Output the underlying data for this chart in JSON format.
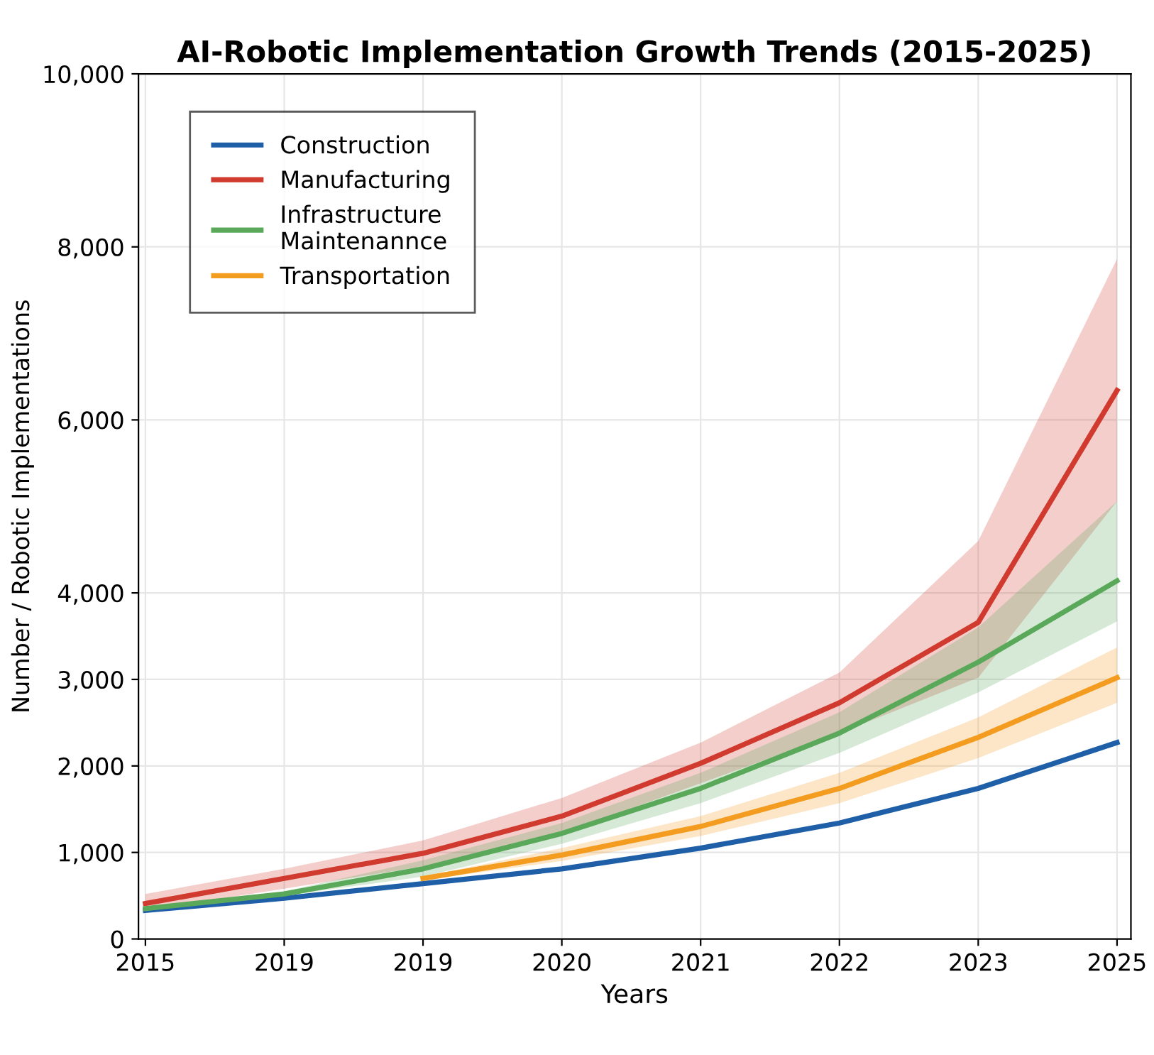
{
  "chart_data": {
    "type": "line",
    "title": "AI-Robotic Implementation Growth Trends (2015-2025)",
    "xlabel": "Years",
    "ylabel": "Number / Robotic Implementations",
    "categories": [
      "2015",
      "2019",
      "2019",
      "2020",
      "2021",
      "2022",
      "2023",
      "2025"
    ],
    "ylim": [
      0,
      10000
    ],
    "yticks": [
      0,
      {
        "value": 1000,
        "label": "1,000"
      },
      {
        "value": 2000,
        "label": "2,000"
      },
      {
        "value": 3000,
        "label": "3,000"
      },
      {
        "value": 4000,
        "label": "4,000"
      },
      {
        "value": 6000,
        "label": "6,000"
      },
      {
        "value": 8000,
        "label": "8,000"
      },
      {
        "value": 10000,
        "label": "10,000"
      }
    ],
    "grid": true,
    "legend": "top left",
    "marker": "none",
    "line_style": "solid",
    "series": [
      {
        "name": "Construction",
        "color": "#1f5fa8",
        "values": [
          330,
          470,
          640,
          810,
          1050,
          1340,
          1740,
          2270
        ]
      },
      {
        "name": "Manufacturing",
        "color": "#d03a2f",
        "values": [
          410,
          700,
          990,
          1420,
          2030,
          2730,
          3660,
          6340
        ],
        "lower": [
          330,
          580,
          840,
          1220,
          1800,
          2380,
          3020,
          5060
        ],
        "upper": [
          520,
          810,
          1140,
          1630,
          2270,
          3080,
          4600,
          7860
        ]
      },
      {
        "name": "Infrastructure\nMaintenannce",
        "color": "#5aa95a",
        "values": [
          350,
          520,
          810,
          1220,
          1740,
          2380,
          3200,
          4140
        ],
        "lower": [
          350,
          500,
          720,
          1100,
          1570,
          2150,
          2850,
          3670
        ],
        "upper": [
          350,
          550,
          910,
          1340,
          1920,
          2620,
          3600,
          5060
        ]
      },
      {
        "name": "Transportation",
        "color": "#f39c1f",
        "values": [
          null,
          null,
          700,
          970,
          1300,
          1740,
          2330,
          3020
        ],
        "lower": [
          null,
          null,
          680,
          900,
          1190,
          1570,
          2090,
          2730
        ],
        "upper": [
          null,
          null,
          720,
          1050,
          1420,
          1920,
          2560,
          3370
        ]
      }
    ]
  }
}
